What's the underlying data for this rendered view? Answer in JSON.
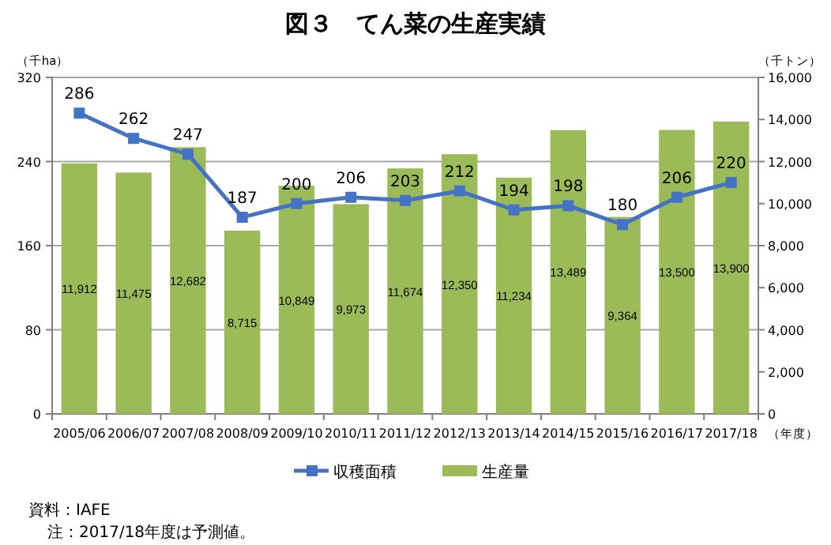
{
  "chart_data": {
    "type": "bar",
    "title": "図３　てん菜の生産実績",
    "categories": [
      "2005/06",
      "2006/07",
      "2007/08",
      "2008/09",
      "2009/10",
      "2010/11",
      "2011/12",
      "2012/13",
      "2013/14",
      "2014/15",
      "2015/16",
      "2016/17",
      "2017/18"
    ],
    "series": [
      {
        "name": "収穫面積",
        "type": "line",
        "color": "#4472c4",
        "marker": "square",
        "values": [
          286,
          262,
          247,
          187,
          200,
          206,
          203,
          212,
          194,
          198,
          180,
          206,
          220
        ]
      },
      {
        "name": "生産量",
        "axis": "y2",
        "color": "#9bbb59",
        "values": [
          11912,
          11475,
          12682,
          8715,
          10849,
          9973,
          11674,
          12350,
          11234,
          13489,
          9364,
          13500,
          13900
        ],
        "value_labels": [
          "11,912",
          "11,475",
          "12,682",
          "8,715",
          "10,849",
          "9,973",
          "11,674",
          "12,350",
          "11,234",
          "13,489",
          "9,364",
          "13,500",
          "13,900"
        ]
      }
    ],
    "ylabel": "（千ha）",
    "y2label": "（千トン）",
    "xlabel": "（年度）",
    "ylim": [
      0,
      320
    ],
    "yticks": [
      0,
      80,
      160,
      240,
      320
    ],
    "y2lim": [
      0,
      16000
    ],
    "y2ticks": [
      0,
      {
        "value": 2000,
        "label": "2,000"
      },
      {
        "value": 4000,
        "label": "4,000"
      },
      {
        "value": 6000,
        "label": "6,000"
      },
      {
        "value": 8000,
        "label": "8,000"
      },
      {
        "value": 10000,
        "label": "10,000"
      },
      {
        "value": 12000,
        "label": "12,000"
      },
      {
        "value": 14000,
        "label": "14,000"
      },
      {
        "value": 16000,
        "label": "16,000"
      }
    ],
    "grid": "y",
    "legend": "bottom",
    "data_labels": true,
    "annotations": [
      "資料：IAFE",
      "注：2017/18年度は予測値。"
    ]
  }
}
